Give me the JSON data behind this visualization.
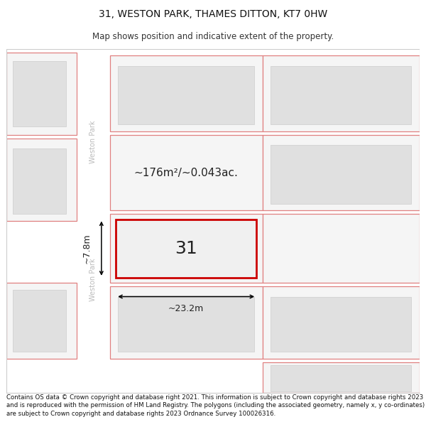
{
  "title": "31, WESTON PARK, THAMES DITTON, KT7 0HW",
  "subtitle": "Map shows position and indicative extent of the property.",
  "footer": "Contains OS data © Crown copyright and database right 2021. This information is subject to Crown copyright and database rights 2023 and is reproduced with the permission of HM Land Registry. The polygons (including the associated geometry, namely x, y co-ordinates) are subject to Crown copyright and database rights 2023 Ordnance Survey 100026316.",
  "area_text": "~176m²/~0.043ac.",
  "number_text": "31",
  "width_text": "~23.2m",
  "height_text": "~7.8m",
  "road_label": "Weston Park",
  "title_fontsize": 10,
  "subtitle_fontsize": 8.5,
  "footer_fontsize": 6.2,
  "plot_color": "#e08080",
  "highlight_color": "#cc0000",
  "building_fill": "#e0e0e0",
  "building_stroke": "#cccccc",
  "road_fill": "#ffffff",
  "map_bg": "#f5f5f5"
}
